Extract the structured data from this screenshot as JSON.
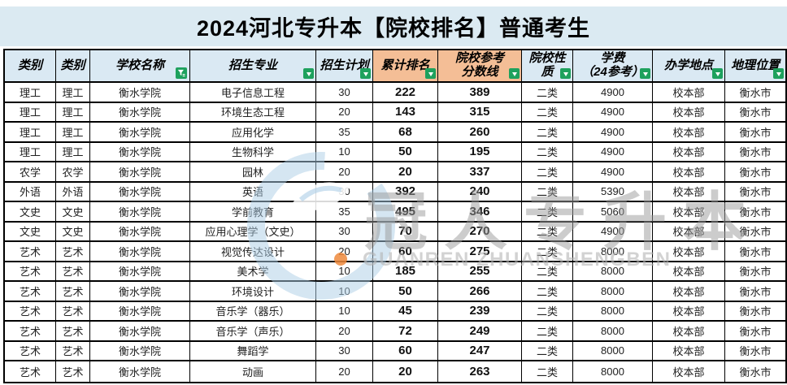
{
  "page_title": "2024河北专升本【院校排名】普通考生",
  "colors": {
    "title_band_bg": "#DBEAF2",
    "header_blue": "#DAE9F3",
    "header_orange": "#F4BE96",
    "filter_button_green": "#1EA15D",
    "grid_border": "#000000",
    "watermark_gray": "#9B9B9B",
    "watermark_blue": "#ABCDE6",
    "watermark_orange_dot": "#EE8A3C"
  },
  "table": {
    "columns": [
      {
        "id": "category1",
        "label": "类别",
        "bg": "blue",
        "icon": null
      },
      {
        "id": "category2",
        "label": "类别",
        "bg": "blue",
        "icon": null
      },
      {
        "id": "school-name",
        "label": "学校名称",
        "bg": "blue",
        "icon": "filter-funnel-icon"
      },
      {
        "id": "major",
        "label": "招生专业",
        "bg": "blue",
        "icon": "sort-dropdown-icon"
      },
      {
        "id": "enrollment-plan",
        "label": "招生计划",
        "bg": "blue",
        "icon": "sort-dropdown-icon"
      },
      {
        "id": "cumulative-rank",
        "label": "累计排名",
        "bg": "orange",
        "icon": "sort-dropdown-icon",
        "bold_data": true
      },
      {
        "id": "reference-score-line",
        "label": "院校参考\n分数线",
        "bg": "orange",
        "icon": "sort-dropdown-icon",
        "bold_data": true
      },
      {
        "id": "school-type",
        "label": "院校性\n质",
        "bg": "blue",
        "icon": "sort-dropdown-icon"
      },
      {
        "id": "tuition",
        "label": "学费\n（24参考）",
        "bg": "blue",
        "icon": "sort-dropdown-icon"
      },
      {
        "id": "campus-location",
        "label": "办学地点",
        "bg": "blue",
        "icon": "sort-dropdown-icon"
      },
      {
        "id": "city",
        "label": "地理位置",
        "bg": "blue",
        "icon": "sort-dropdown-icon"
      }
    ],
    "rows": [
      [
        "理工",
        "理工",
        "衡水学院",
        "电子信息工程",
        "30",
        "222",
        "389",
        "二类",
        "4900",
        "校本部",
        "衡水市"
      ],
      [
        "理工",
        "理工",
        "衡水学院",
        "环境生态工程",
        "20",
        "143",
        "315",
        "二类",
        "4900",
        "校本部",
        "衡水市"
      ],
      [
        "理工",
        "理工",
        "衡水学院",
        "应用化学",
        "35",
        "68",
        "260",
        "二类",
        "4900",
        "校本部",
        "衡水市"
      ],
      [
        "理工",
        "理工",
        "衡水学院",
        "生物科学",
        "10",
        "50",
        "195",
        "二类",
        "4900",
        "校本部",
        "衡水市"
      ],
      [
        "农学",
        "农学",
        "衡水学院",
        "园林",
        "20",
        "20",
        "337",
        "二类",
        "4900",
        "校本部",
        "衡水市"
      ],
      [
        "外语",
        "外语",
        "衡水学院",
        "英语",
        "30",
        "392",
        "240",
        "二类",
        "5390",
        "校本部",
        "衡水市"
      ],
      [
        "文史",
        "文史",
        "衡水学院",
        "学前教育",
        "35",
        "495",
        "346",
        "二类",
        "5060",
        "校本部",
        "衡水市"
      ],
      [
        "文史",
        "文史",
        "衡水学院",
        "应用心理学（文史）",
        "30",
        "70",
        "270",
        "二类",
        "4900",
        "校本部",
        "衡水市"
      ],
      [
        "艺术",
        "艺术",
        "衡水学院",
        "视觉传达设计",
        "20",
        "60",
        "275",
        "二类",
        "8000",
        "校本部",
        "衡水市"
      ],
      [
        "艺术",
        "艺术",
        "衡水学院",
        "美术学",
        "10",
        "185",
        "255",
        "二类",
        "8000",
        "校本部",
        "衡水市"
      ],
      [
        "艺术",
        "艺术",
        "衡水学院",
        "环境设计",
        "10",
        "50",
        "266",
        "二类",
        "8000",
        "校本部",
        "衡水市"
      ],
      [
        "艺术",
        "艺术",
        "衡水学院",
        "音乐学（器乐）",
        "10",
        "45",
        "239",
        "二类",
        "8000",
        "校本部",
        "衡水市"
      ],
      [
        "艺术",
        "艺术",
        "衡水学院",
        "音乐学（声乐）",
        "20",
        "72",
        "249",
        "二类",
        "8000",
        "校本部",
        "衡水市"
      ],
      [
        "艺术",
        "艺术",
        "衡水学院",
        "舞蹈学",
        "30",
        "60",
        "247",
        "二类",
        "8000",
        "校本部",
        "衡水市"
      ],
      [
        "艺术",
        "艺术",
        "衡水学院",
        "动画",
        "20",
        "20",
        "263",
        "二类",
        "8000",
        "校本部",
        "衡水市"
      ]
    ]
  },
  "watermark": {
    "cn": "冠人专升本",
    "en": "GUANREN ZHUANSHENGBEN"
  }
}
